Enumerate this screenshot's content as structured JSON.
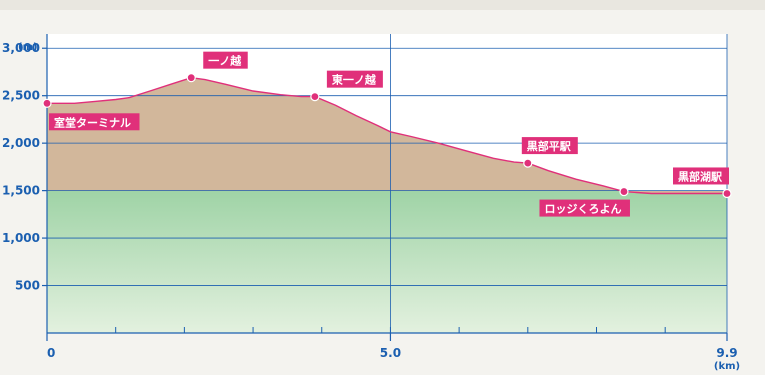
{
  "chart_data": {
    "type": "area",
    "title": "",
    "header_fragment": "",
    "y_unit": "(m)",
    "x_unit": "(km)",
    "ylim": [
      0,
      3150
    ],
    "xlim": [
      0,
      9.9
    ],
    "y_ticks": [
      {
        "value": 500,
        "label": "500"
      },
      {
        "value": 1000,
        "label": "1,000"
      },
      {
        "value": 1500,
        "label": "1,500"
      },
      {
        "value": 2000,
        "label": "2,000"
      },
      {
        "value": 2500,
        "label": "2,500"
      },
      {
        "value": 3000,
        "label": "3,000"
      }
    ],
    "x_ticks": [
      {
        "value": 0,
        "label": "0"
      },
      {
        "value": 5.0,
        "label": "5.0"
      },
      {
        "value": 9.9,
        "label": "9.9"
      }
    ],
    "green_band_top": 1500,
    "profile": [
      [
        0,
        2420
      ],
      [
        0.1,
        2420
      ],
      [
        0.4,
        2420
      ],
      [
        0.7,
        2440
      ],
      [
        1.0,
        2460
      ],
      [
        1.2,
        2480
      ],
      [
        1.5,
        2550
      ],
      [
        1.8,
        2620
      ],
      [
        2.1,
        2690
      ],
      [
        2.3,
        2670
      ],
      [
        2.6,
        2620
      ],
      [
        3.0,
        2550
      ],
      [
        3.4,
        2510
      ],
      [
        3.7,
        2490
      ],
      [
        3.9,
        2490
      ],
      [
        4.2,
        2400
      ],
      [
        4.5,
        2290
      ],
      [
        4.8,
        2190
      ],
      [
        5.0,
        2120
      ],
      [
        5.3,
        2070
      ],
      [
        5.7,
        2000
      ],
      [
        6.1,
        1920
      ],
      [
        6.5,
        1840
      ],
      [
        6.8,
        1800
      ],
      [
        7.0,
        1790
      ],
      [
        7.3,
        1710
      ],
      [
        7.7,
        1620
      ],
      [
        8.1,
        1550
      ],
      [
        8.4,
        1490
      ],
      [
        8.8,
        1470
      ],
      [
        9.3,
        1470
      ],
      [
        9.9,
        1470
      ]
    ],
    "stations": [
      {
        "name": "室堂ターミナル",
        "x": 0,
        "y": 2420,
        "label_side": "below"
      },
      {
        "name": "一ノ越",
        "x": 2.1,
        "y": 2690,
        "label_side": "above-right"
      },
      {
        "name": "東一ノ越",
        "x": 3.9,
        "y": 2490,
        "label_side": "above-right"
      },
      {
        "name": "黒部平駅",
        "x": 7.0,
        "y": 1790,
        "label_side": "above"
      },
      {
        "name": "ロッジくろよん",
        "x": 8.4,
        "y": 1490,
        "label_side": "below-left"
      },
      {
        "name": "黒部湖駅",
        "x": 9.9,
        "y": 1470,
        "label_side": "above-left"
      }
    ],
    "colors": {
      "line": "#e0307a",
      "marker": "#e0307a",
      "label_bg": "#e0307a",
      "label_text": "#ffffff",
      "brown_fill": "#d2b79b",
      "green_fill_top": "#9fd3a6",
      "green_fill_bottom": "#e3f1df",
      "axis": "#1b5fb0",
      "grid": "#1b5fb0"
    }
  }
}
